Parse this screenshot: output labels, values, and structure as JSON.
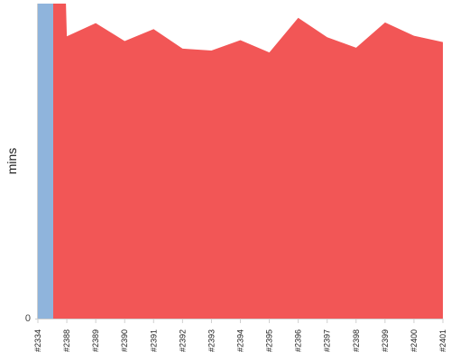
{
  "chart_data": {
    "type": "area",
    "ylabel": "mins",
    "xlabel": "",
    "title": "",
    "y_tick_labels": [
      "0"
    ],
    "ylim": [
      0,
      100
    ],
    "categories": [
      "#2334",
      "#2388",
      "#2389",
      "#2390",
      "#2391",
      "#2392",
      "#2393",
      "#2394",
      "#2395",
      "#2396",
      "#2397",
      "#2398",
      "#2399",
      "#2400",
      "#2401"
    ],
    "series": [
      {
        "color": "#8fb4dc",
        "values": [
          100,
          0,
          0,
          0,
          0,
          0,
          0,
          0,
          0,
          0,
          0,
          0,
          0,
          0,
          0
        ]
      },
      {
        "color": "#f25656",
        "values": [
          100,
          89.6,
          93.8,
          88.1,
          91.9,
          85.7,
          85.1,
          88.4,
          84.5,
          95.5,
          89.3,
          86.0,
          94.0,
          89.8,
          87.8
        ]
      }
    ],
    "grid": false,
    "legend": "none"
  }
}
